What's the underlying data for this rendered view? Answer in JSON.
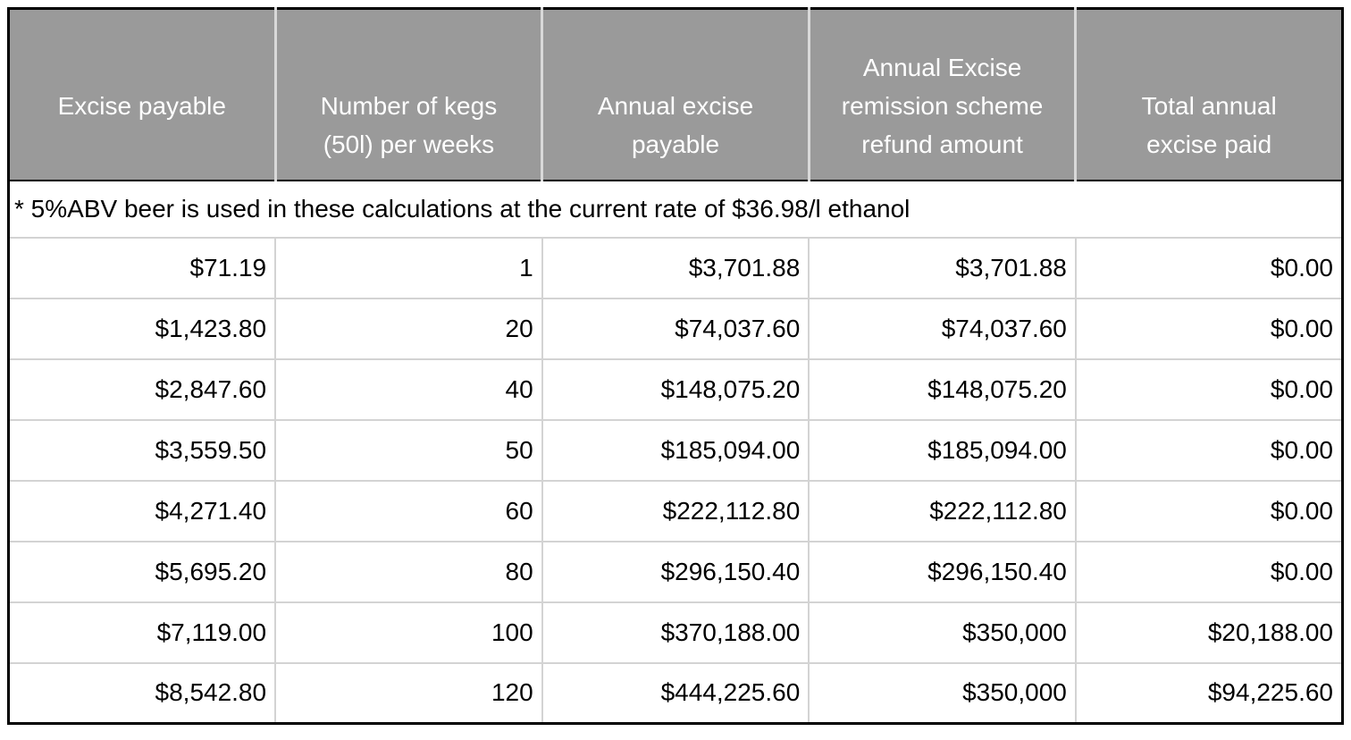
{
  "chart_data": {
    "type": "table",
    "columns": [
      "Excise payable",
      "Number of kegs\n(50l) per weeks",
      "Annual excise\npayable",
      "Annual Excise\nremission scheme\nrefund amount",
      "Total annual\nexcise paid"
    ],
    "note": "* 5%ABV beer is used in these calculations at the current rate of $36.98/l ethanol",
    "rows": [
      [
        "$71.19",
        "1",
        "$3,701.88",
        "$3,701.88",
        "$0.00"
      ],
      [
        "$1,423.80",
        "20",
        "$74,037.60",
        "$74,037.60",
        "$0.00"
      ],
      [
        "$2,847.60",
        "40",
        "$148,075.20",
        "$148,075.20",
        "$0.00"
      ],
      [
        "$3,559.50",
        "50",
        "$185,094.00",
        "$185,094.00",
        "$0.00"
      ],
      [
        "$4,271.40",
        "60",
        "$222,112.80",
        "$222,112.80",
        "$0.00"
      ],
      [
        "$5,695.20",
        "80",
        "$296,150.40",
        "$296,150.40",
        "$0.00"
      ],
      [
        "$7,119.00",
        "100",
        "$370,188.00",
        "$350,000",
        "$20,188.00"
      ],
      [
        "$8,542.80",
        "120",
        "$444,225.60",
        "$350,000",
        "$94,225.60"
      ]
    ]
  },
  "colors": {
    "header_bg": "#9a9a9a",
    "header_text": "#ffffff",
    "outer_border": "#000000",
    "header_divider": "#d9d9d9",
    "grid_line": "#d3d3d3",
    "body_text": "#000000"
  }
}
